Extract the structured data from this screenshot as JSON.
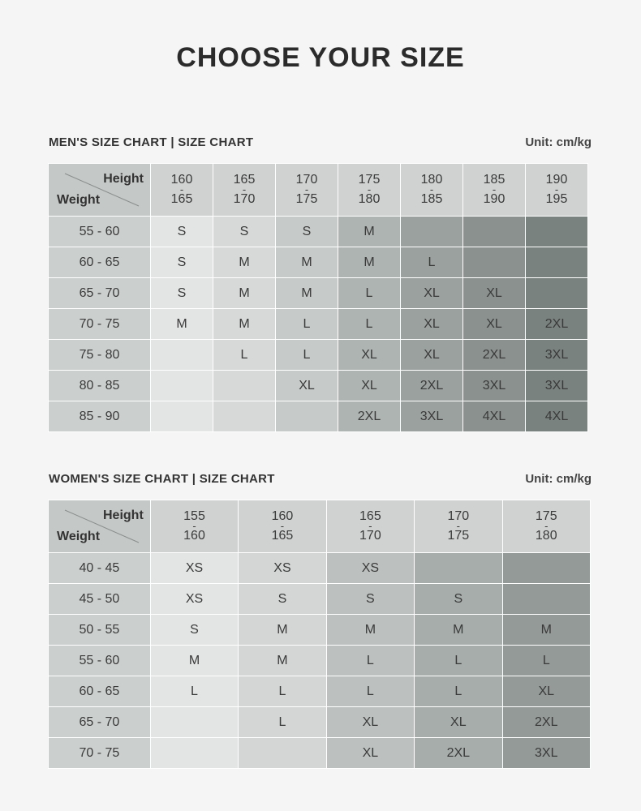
{
  "title": "CHOOSE YOUR SIZE",
  "men": {
    "title": "MEN'S SIZE CHART | SIZE CHART",
    "unit": "Unit: cm/kg",
    "corner_height_label": "Height",
    "corner_weight_label": "Weight",
    "heights": [
      {
        "from": "160",
        "sep": "-",
        "to": "165"
      },
      {
        "from": "165",
        "sep": "-",
        "to": "170"
      },
      {
        "from": "170",
        "sep": "-",
        "to": "175"
      },
      {
        "from": "175",
        "sep": "-",
        "to": "180"
      },
      {
        "from": "180",
        "sep": "-",
        "to": "185"
      },
      {
        "from": "185",
        "sep": "-",
        "to": "190"
      },
      {
        "from": "190",
        "sep": "-",
        "to": "195"
      }
    ],
    "rows": [
      {
        "weight": "55 - 60",
        "sizes": [
          "S",
          "S",
          "S",
          "M",
          "",
          "",
          ""
        ]
      },
      {
        "weight": "60 - 65",
        "sizes": [
          "S",
          "M",
          "M",
          "M",
          "L",
          "",
          ""
        ]
      },
      {
        "weight": "65 - 70",
        "sizes": [
          "S",
          "M",
          "M",
          "L",
          "XL",
          "XL",
          ""
        ]
      },
      {
        "weight": "70 - 75",
        "sizes": [
          "M",
          "M",
          "L",
          "L",
          "XL",
          "XL",
          "2XL"
        ]
      },
      {
        "weight": "75 - 80",
        "sizes": [
          "",
          "L",
          "L",
          "XL",
          "XL",
          "2XL",
          "3XL"
        ]
      },
      {
        "weight": "80 - 85",
        "sizes": [
          "",
          "",
          "XL",
          "XL",
          "2XL",
          "3XL",
          "3XL"
        ]
      },
      {
        "weight": "85 - 90",
        "sizes": [
          "",
          "",
          "",
          "2XL",
          "3XL",
          "4XL",
          "4XL"
        ]
      }
    ],
    "column_colors": [
      "#e3e5e4",
      "#d6d9d8",
      "#c6cac8",
      "#aeb4b1",
      "#9aa19e",
      "#8a918e",
      "#7a827f"
    ]
  },
  "women": {
    "title": "WOMEN'S SIZE CHART | SIZE CHART",
    "unit": "Unit: cm/kg",
    "corner_height_label": "Height",
    "corner_weight_label": "Weight",
    "heights": [
      {
        "from": "155",
        "sep": "-",
        "to": "160"
      },
      {
        "from": "160",
        "sep": "-",
        "to": "165"
      },
      {
        "from": "165",
        "sep": "-",
        "to": "170"
      },
      {
        "from": "170",
        "sep": "-",
        "to": "175"
      },
      {
        "from": "175",
        "sep": "-",
        "to": "180"
      }
    ],
    "rows": [
      {
        "weight": "40 - 45",
        "sizes": [
          "XS",
          "XS",
          "XS",
          "",
          ""
        ]
      },
      {
        "weight": "45 - 50",
        "sizes": [
          "XS",
          "S",
          "S",
          "S",
          ""
        ]
      },
      {
        "weight": "50 - 55",
        "sizes": [
          "S",
          "M",
          "M",
          "M",
          "M"
        ]
      },
      {
        "weight": "55 - 60",
        "sizes": [
          "M",
          "M",
          "L",
          "L",
          "L"
        ]
      },
      {
        "weight": "60 - 65",
        "sizes": [
          "L",
          "L",
          "L",
          "L",
          "XL"
        ]
      },
      {
        "weight": "65 - 70",
        "sizes": [
          "",
          "L",
          "XL",
          "XL",
          "2XL"
        ]
      },
      {
        "weight": "70 - 75",
        "sizes": [
          "",
          "",
          "XL",
          "2XL",
          "3XL"
        ]
      }
    ],
    "column_colors": [
      "#e3e5e4",
      "#d3d6d5",
      "#bcc1bf",
      "#a6adaa",
      "#939a97"
    ]
  }
}
